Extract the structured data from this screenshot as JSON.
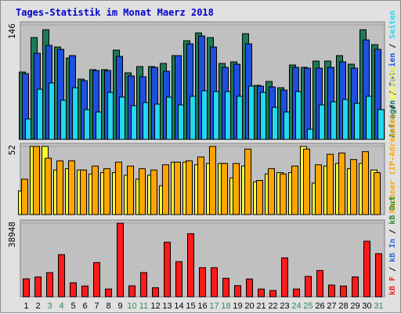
{
  "title": "Tages-Statistik im Monat Maerz 2018",
  "colors": {
    "anfragen": "#1e7a56",
    "dateien": "#1e4fe0",
    "seiten": "#22d8f0",
    "rechner": "#ffa500",
    "besuche": "#ffff30",
    "kbf": "#ff1a1a",
    "kbin": "#2b6cd6",
    "kbout": "#2e8b2e",
    "weekend": "#2e8b57",
    "weekday": "#000000",
    "panel": "#c0c0c0",
    "frame": "#e0e0e0"
  },
  "legend": {
    "top": [
      {
        "text": "Anfragen",
        "color": "#1e7a56"
      },
      {
        "text": "/",
        "color": "#000000"
      },
      {
        "text": "Dateien",
        "color": "#1e4fe0"
      },
      {
        "text": "/",
        "color": "#000000"
      },
      {
        "text": "Seiten",
        "color": "#22d8f0"
      }
    ],
    "middle": [
      {
        "text": "Rechner (IP-Adressen)",
        "color": "#ffa500"
      },
      {
        "text": "/",
        "color": "#000000"
      },
      {
        "text": "Besuche",
        "color": "#ffff30"
      }
    ],
    "bottom": [
      {
        "text": "kB F",
        "color": "#ff1a1a"
      },
      {
        "text": "/",
        "color": "#000000"
      },
      {
        "text": "kB In",
        "color": "#2b6cd6"
      },
      {
        "text": "/",
        "color": "#000000"
      },
      {
        "text": "kB Out",
        "color": "#2e8b2e"
      }
    ]
  },
  "chart_data": [
    {
      "type": "bar",
      "panel": "requests",
      "ymax": 146,
      "ytick_label": "146",
      "x": [
        "1",
        "2",
        "3",
        "4",
        "5",
        "6",
        "7",
        "8",
        "9",
        "10",
        "11",
        "12",
        "13",
        "14",
        "15",
        "16",
        "17",
        "18",
        "19",
        "20",
        "21",
        "22",
        "23",
        "24",
        "25",
        "26",
        "27",
        "28",
        "29",
        "30",
        "31"
      ],
      "series": [
        {
          "name": "Anfragen",
          "values": [
            86,
            130,
            140,
            118,
            104,
            77,
            89,
            89,
            114,
            85,
            93,
            93,
            97,
            107,
            126,
            136,
            130,
            97,
            99,
            135,
            69,
            74,
            66,
            95,
            92,
            100,
            100,
            107,
            96,
            140,
            121
          ]
        },
        {
          "name": "Dateien",
          "values": [
            84,
            110,
            120,
            115,
            107,
            75,
            88,
            88,
            106,
            81,
            80,
            92,
            87,
            107,
            122,
            132,
            118,
            92,
            96,
            122,
            68,
            67,
            63,
            92,
            91,
            91,
            92,
            99,
            91,
            127,
            115
          ]
        },
        {
          "name": "Seiten",
          "values": [
            26,
            64,
            72,
            50,
            66,
            38,
            35,
            60,
            54,
            43,
            47,
            45,
            54,
            44,
            55,
            62,
            61,
            61,
            55,
            68,
            60,
            41,
            35,
            61,
            13,
            44,
            48,
            51,
            46,
            55,
            38
          ]
        }
      ]
    },
    {
      "type": "bar",
      "panel": "visits",
      "ymax": 52,
      "ytick_label": "52",
      "x": [
        "1",
        "2",
        "3",
        "4",
        "5",
        "6",
        "7",
        "8",
        "9",
        "10",
        "11",
        "12",
        "13",
        "14",
        "15",
        "16",
        "17",
        "18",
        "19",
        "20",
        "21",
        "22",
        "23",
        "24",
        "25",
        "26",
        "27",
        "28",
        "29",
        "30",
        "31"
      ],
      "series": [
        {
          "name": "Rechner (IP-Adressen)",
          "values": [
            27,
            52,
            43,
            41,
            41,
            34,
            37,
            35,
            40,
            37,
            35,
            34,
            38,
            40,
            41,
            44,
            52,
            39,
            39,
            50,
            26,
            35,
            31,
            37,
            50,
            38,
            46,
            47,
            42,
            48,
            32
          ]
        },
        {
          "name": "Besuche",
          "values": [
            18,
            52,
            52,
            34,
            35,
            34,
            31,
            32,
            32,
            30,
            27,
            30,
            22,
            40,
            40,
            38,
            39,
            39,
            28,
            37,
            25,
            31,
            32,
            32,
            52,
            24,
            37,
            39,
            35,
            39,
            34
          ]
        }
      ]
    },
    {
      "type": "bar",
      "panel": "volume",
      "ymax": 38948,
      "ytick_label": "38948",
      "x": [
        "1",
        "2",
        "3",
        "4",
        "5",
        "6",
        "7",
        "8",
        "9",
        "10",
        "11",
        "12",
        "13",
        "14",
        "15",
        "16",
        "17",
        "18",
        "19",
        "20",
        "21",
        "22",
        "23",
        "24",
        "25",
        "26",
        "27",
        "28",
        "29",
        "30",
        "31"
      ],
      "series": [
        {
          "name": "kB F",
          "values": [
            9500,
            10500,
            12800,
            22300,
            7400,
            5700,
            18100,
            4100,
            38900,
            5800,
            12800,
            4800,
            28900,
            18600,
            33400,
            15400,
            15400,
            9800,
            5900,
            9400,
            4100,
            3300,
            20600,
            4100,
            10800,
            13900,
            6200,
            5700,
            10500,
            29400,
            22800
          ]
        }
      ]
    }
  ]
}
